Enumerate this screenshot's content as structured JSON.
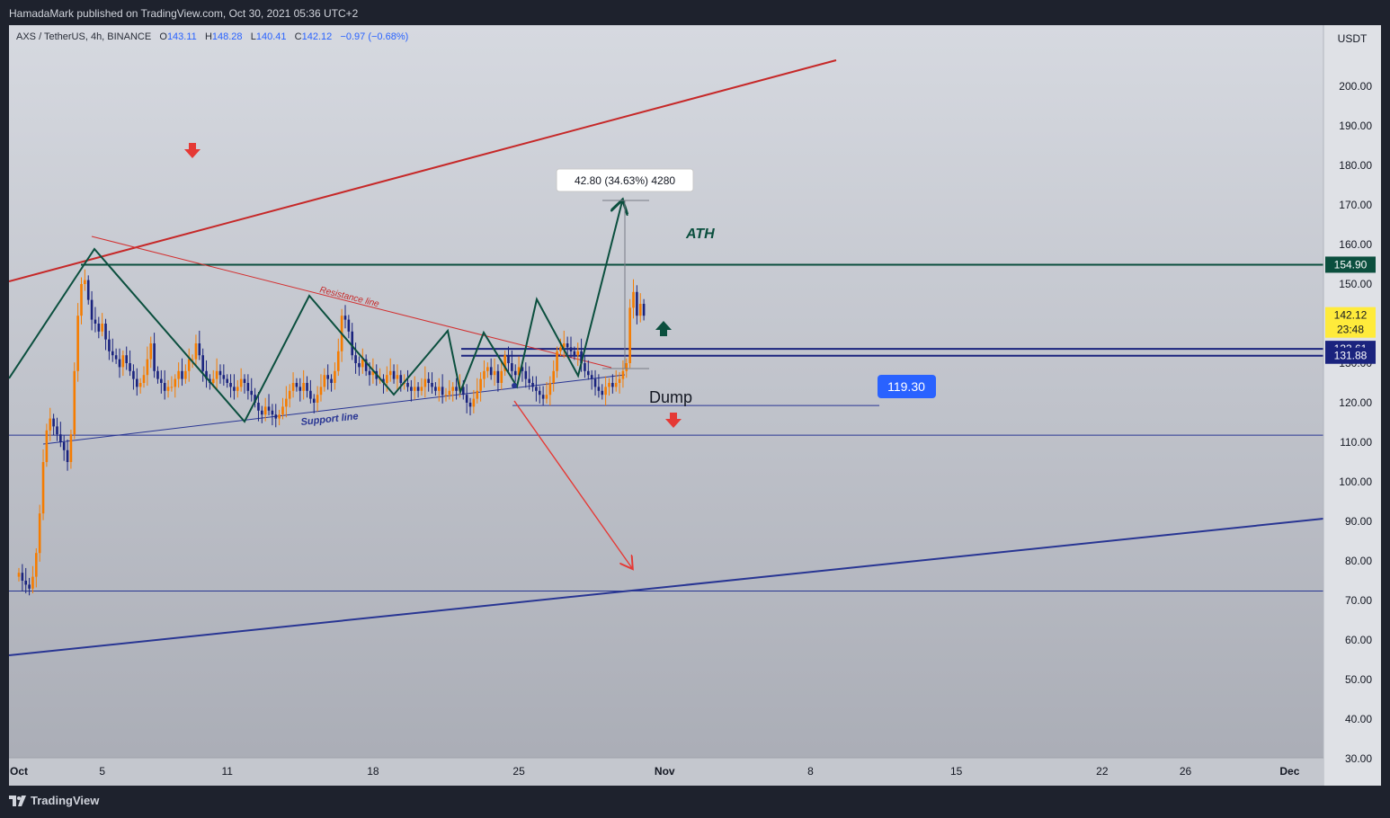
{
  "header": {
    "publisher": "HamadaMark published on TradingView.com, Oct 30, 2021 05:36 UTC+2"
  },
  "symbol": {
    "name": "AXS / TetherUS, 4h, BINANCE",
    "o_label": "O",
    "o": "143.11",
    "h_label": "H",
    "h": "148.28",
    "l_label": "L",
    "l": "140.41",
    "c_label": "C",
    "c": "142.12",
    "change": "−0.97 (−0.68%)"
  },
  "footer": {
    "logo_text": "TradingView"
  },
  "colors": {
    "bg_top": "#d6d9e0",
    "bg_bottom": "#a9acb5",
    "bull": "#f57c00",
    "bear": "#1a237e",
    "green": "#0b4f3e",
    "red": "#c62828",
    "blue": "#283593",
    "accent_blue": "#2962ff"
  },
  "chart_data": {
    "type": "candlestick",
    "ylim": [
      25,
      215
    ],
    "y_ticks": [
      "200.00",
      "190.00",
      "180.00",
      "170.00",
      "160.00",
      "150.00",
      "140.00",
      "130.00",
      "120.00",
      "110.00",
      "100.00",
      "90.00",
      "80.00",
      "70.00",
      "60.00",
      "50.00",
      "40.00",
      "30.00"
    ],
    "y_tick_values": [
      200,
      190,
      180,
      170,
      160,
      150,
      140,
      130,
      120,
      110,
      100,
      90,
      80,
      70,
      60,
      50,
      40,
      30
    ],
    "currency_label": "USDT",
    "x_ticks": [
      "Oct",
      "5",
      "11",
      "18",
      "25",
      "Nov",
      "8",
      "15",
      "22",
      "26",
      "Dec"
    ],
    "x_tick_days": [
      1,
      5,
      11,
      18,
      25,
      32,
      39,
      46,
      53,
      57,
      62
    ],
    "price_labels": [
      {
        "text": "154.90",
        "value": 154.9,
        "color": "#0b4f3e"
      },
      {
        "text": "142.12",
        "sub": "23:48",
        "value": 142.12,
        "color": "#ffeb3b"
      },
      {
        "text": "133.61",
        "value": 133.61,
        "color": "#1a237e"
      },
      {
        "text": "131.88",
        "value": 131.88,
        "color": "#1a237e"
      }
    ],
    "levels": [
      {
        "value": 154.9,
        "color": "#0b4f3e"
      },
      {
        "value": 133.61,
        "color": "#1a237e"
      },
      {
        "value": 131.88,
        "color": "#1a237e"
      },
      {
        "value": 119.3,
        "color": "#283593"
      },
      {
        "value": 111.8,
        "color": "#283593"
      },
      {
        "value": 72.4,
        "color": "#283593"
      }
    ],
    "tag_119": "119.30",
    "measure_label": "42.80 (34.63%) 4280",
    "texts": {
      "ath": "ATH",
      "dump": "Dump",
      "resistance": "Resistance line",
      "support": "Support line"
    },
    "closes": [
      77,
      75,
      74,
      73,
      76,
      82,
      92,
      105,
      113,
      116,
      114,
      112,
      110,
      108,
      105,
      112,
      128,
      142,
      150,
      151,
      146,
      141,
      140,
      138,
      140,
      136,
      133,
      132,
      131,
      129,
      132,
      130,
      128,
      126,
      124,
      125,
      127,
      131,
      135,
      128,
      126,
      125,
      123,
      124,
      124,
      126,
      128,
      126,
      128,
      131,
      131,
      135,
      132,
      128,
      126,
      125,
      126,
      128,
      127,
      126,
      125,
      124,
      123,
      124,
      126,
      125,
      123,
      122,
      120,
      118,
      117,
      119,
      118,
      117,
      116,
      117,
      119,
      121,
      123,
      125,
      124,
      123,
      125,
      123,
      121,
      120,
      122,
      124,
      127,
      126,
      125,
      128,
      133,
      142,
      141,
      138,
      132,
      130,
      129,
      131,
      128,
      127,
      128,
      126,
      126,
      125,
      127,
      128,
      126,
      127,
      125,
      125,
      124,
      123,
      124,
      123,
      124,
      126,
      125,
      124,
      123,
      124,
      122,
      122,
      123,
      124,
      123,
      124,
      122,
      120,
      119,
      121,
      123,
      126,
      128,
      129,
      127,
      128,
      125,
      128,
      132,
      130,
      128,
      127,
      129,
      128,
      126,
      125,
      124,
      123,
      122,
      121,
      122,
      125,
      128,
      133,
      134,
      135,
      134,
      133,
      132,
      133,
      130,
      128,
      127,
      126,
      124,
      123,
      122,
      124,
      125,
      124,
      125,
      126,
      128,
      130,
      144,
      148,
      142,
      145,
      142
    ]
  }
}
